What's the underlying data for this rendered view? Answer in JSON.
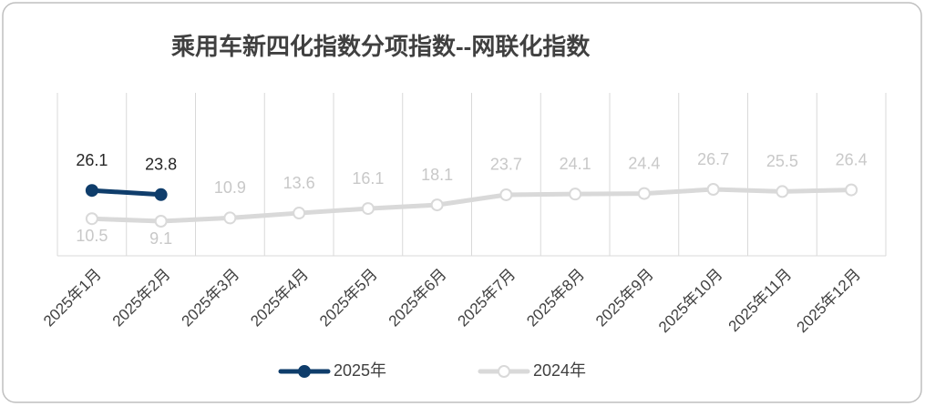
{
  "chart_data": {
    "type": "line",
    "title": "乘用车新四化指数分项指数--网联化指数",
    "categories": [
      "2025年1月",
      "2025年2月",
      "2025年3月",
      "2025年4月",
      "2025年5月",
      "2025年6月",
      "2025年7月",
      "2025年8月",
      "2025年9月",
      "2025年10月",
      "2025年11月",
      "2025年12月"
    ],
    "series": [
      {
        "name": "2025年",
        "color": "#0f3d6b",
        "values": [
          26.1,
          23.8,
          null,
          null,
          null,
          null,
          null,
          null,
          null,
          null,
          null,
          null
        ]
      },
      {
        "name": "2024年",
        "color": "#d9d9d9",
        "values": [
          10.5,
          9.1,
          10.9,
          13.6,
          16.1,
          18.1,
          23.7,
          24.1,
          24.4,
          26.7,
          25.5,
          26.4
        ]
      }
    ],
    "ylim": [
      -10,
      80
    ],
    "grid": true,
    "legend": "bottom"
  }
}
